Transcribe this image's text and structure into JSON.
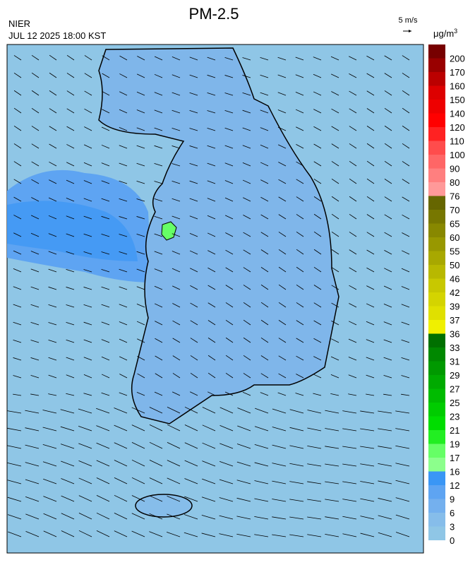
{
  "header": {
    "title": "PM-2.5",
    "agency": "NIER",
    "timestamp": "JUL 12 2025 18:00 KST",
    "wind_scale": "5 m/s"
  },
  "colorbar": {
    "unit_base": "μg/m",
    "unit_exponent": "3",
    "levels": [
      0,
      3,
      6,
      9,
      12,
      16,
      17,
      19,
      21,
      23,
      25,
      27,
      29,
      31,
      33,
      36,
      37,
      39,
      42,
      46,
      50,
      55,
      60,
      65,
      70,
      76,
      80,
      90,
      100,
      110,
      120,
      140,
      150,
      160,
      170,
      200
    ],
    "colors": [
      "#8fc6e6",
      "#86bdea",
      "#74b0ee",
      "#5ea4f2",
      "#3a96f5",
      "#8cff8c",
      "#66ff66",
      "#22ee22",
      "#00dd00",
      "#00cc00",
      "#00bb00",
      "#00aa00",
      "#009900",
      "#008800",
      "#007000",
      "#f0f000",
      "#e0e000",
      "#d4d400",
      "#c8c800",
      "#b8b800",
      "#a8a800",
      "#989800",
      "#888800",
      "#777700",
      "#666600",
      "#ff9999",
      "#ff7f7f",
      "#ff6666",
      "#ff4c4c",
      "#ff2222",
      "#ff0000",
      "#ee0000",
      "#dd0000",
      "#bb0000",
      "#990000",
      "#770000"
    ]
  }
}
